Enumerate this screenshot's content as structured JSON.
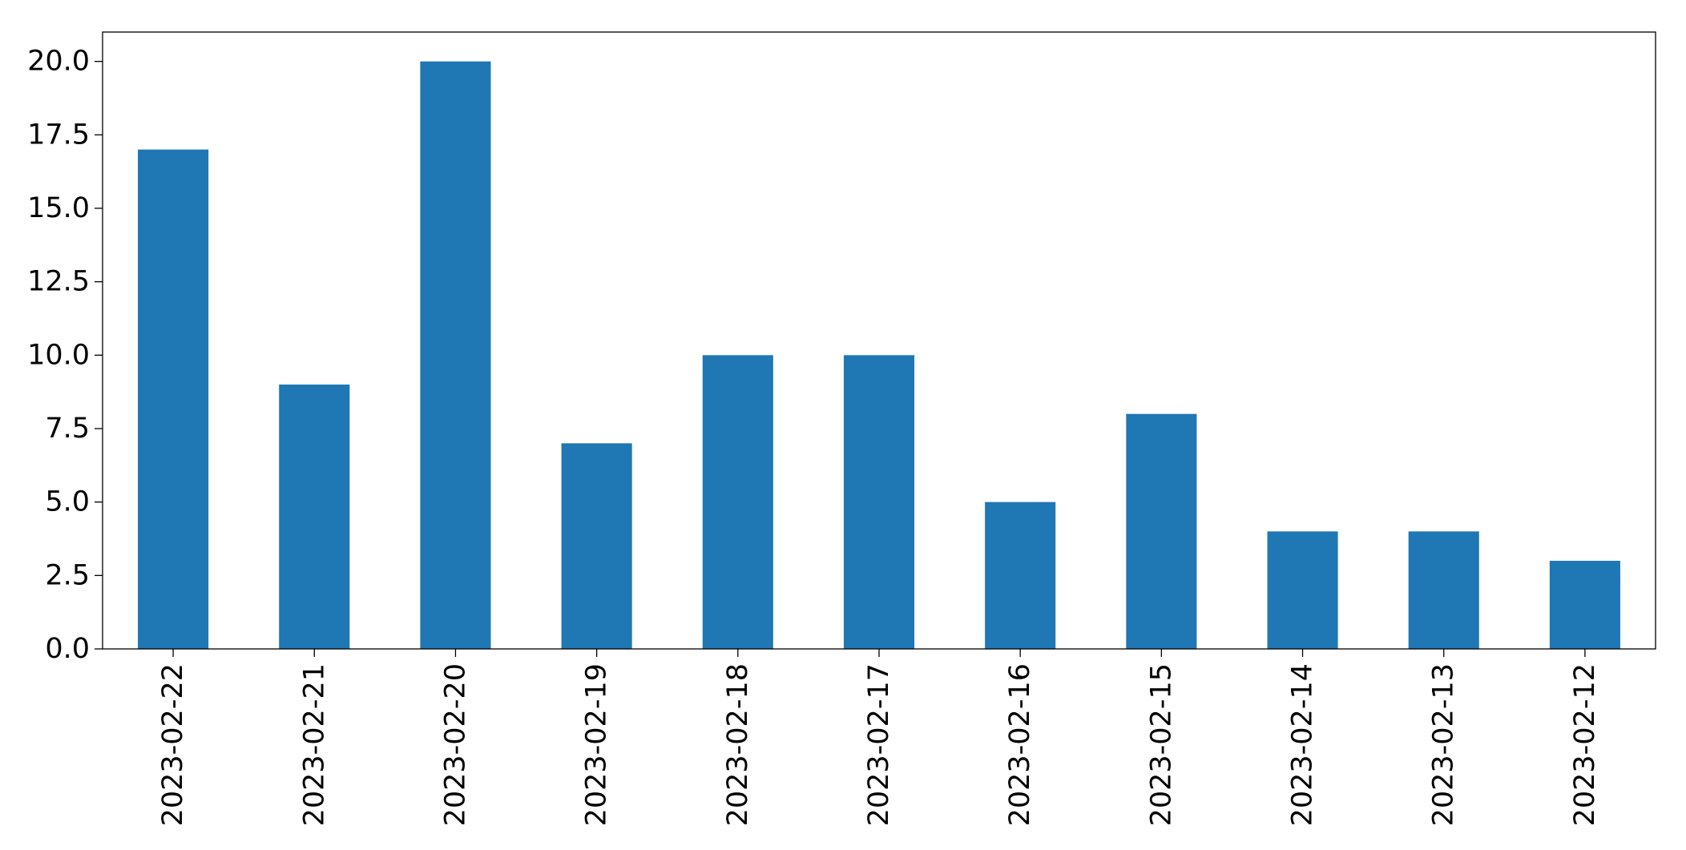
{
  "chart_data": {
    "type": "bar",
    "title": "",
    "xlabel": "",
    "ylabel": "",
    "categories": [
      "2023-02-22",
      "2023-02-21",
      "2023-02-20",
      "2023-02-19",
      "2023-02-18",
      "2023-02-17",
      "2023-02-16",
      "2023-02-15",
      "2023-02-14",
      "2023-02-13",
      "2023-02-12"
    ],
    "values": [
      17,
      9,
      20,
      7,
      10,
      10,
      5,
      8,
      4,
      4,
      3
    ],
    "ylim": [
      0,
      21
    ],
    "yticks": [
      "0.0",
      "2.5",
      "5.0",
      "7.5",
      "10.0",
      "12.5",
      "15.0",
      "17.5",
      "20.0"
    ],
    "ytick_values": [
      0,
      2.5,
      5,
      7.5,
      10,
      12.5,
      15,
      17.5,
      20
    ],
    "bar_color": "#1f77b4",
    "grid": false,
    "legend": false
  }
}
